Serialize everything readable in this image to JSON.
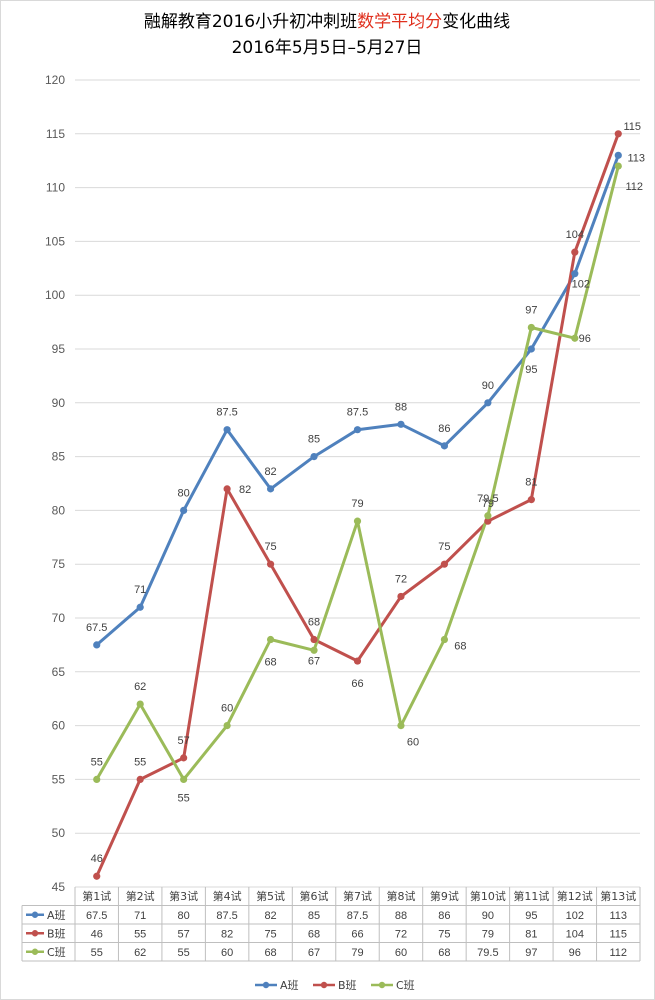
{
  "chart_data": {
    "type": "line",
    "title_parts": [
      "融解教育2016小升初冲刺班",
      "数学平均分",
      "变化曲线"
    ],
    "subtitle": "2016年5月5日–5月27日",
    "categories": [
      "第1试",
      "第2试",
      "第3试",
      "第4试",
      "第5试",
      "第6试",
      "第7试",
      "第8试",
      "第9试",
      "第10试",
      "第11试",
      "第12试",
      "第13试"
    ],
    "series": [
      {
        "name": "A班",
        "color": "#4f81bd",
        "values": [
          67.5,
          71,
          80,
          87.5,
          82,
          85,
          87.5,
          88,
          86,
          90,
          95,
          102,
          113
        ]
      },
      {
        "name": "B班",
        "color": "#c0504d",
        "values": [
          46,
          55,
          57,
          82,
          75,
          68,
          66,
          72,
          75,
          79,
          81,
          104,
          115
        ]
      },
      {
        "name": "C班",
        "color": "#9bbb59",
        "values": [
          55,
          62,
          55,
          60,
          68,
          67,
          79,
          60,
          68,
          79.5,
          97,
          96,
          112
        ]
      }
    ],
    "ylim": [
      45,
      120
    ],
    "yticks": [
      45,
      50,
      55,
      60,
      65,
      70,
      75,
      80,
      85,
      90,
      95,
      100,
      105,
      110,
      115,
      120
    ],
    "grid": true,
    "legend_position": "bottom",
    "data_table": true
  }
}
